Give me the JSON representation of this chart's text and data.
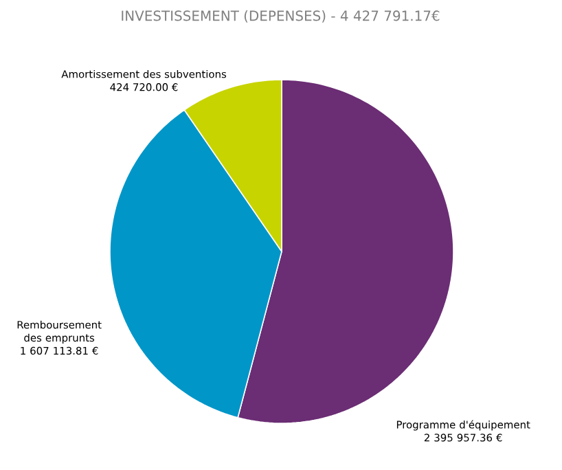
{
  "chart_data": {
    "type": "pie",
    "title": "INVESTISSEMENT (DEPENSES) - 4 427 791.17€",
    "categories": [
      "Programme d'équipement",
      "Remboursement des emprunts",
      "Amortissement des subventions"
    ],
    "values": [
      2395957.36,
      1607113.81,
      424720.0
    ],
    "value_labels": [
      "2 395 957.36 €",
      "1 607 113.81 €",
      "424 720.00  €"
    ],
    "colors": [
      "#6b2d74",
      "#0096c8",
      "#c8d400"
    ]
  }
}
